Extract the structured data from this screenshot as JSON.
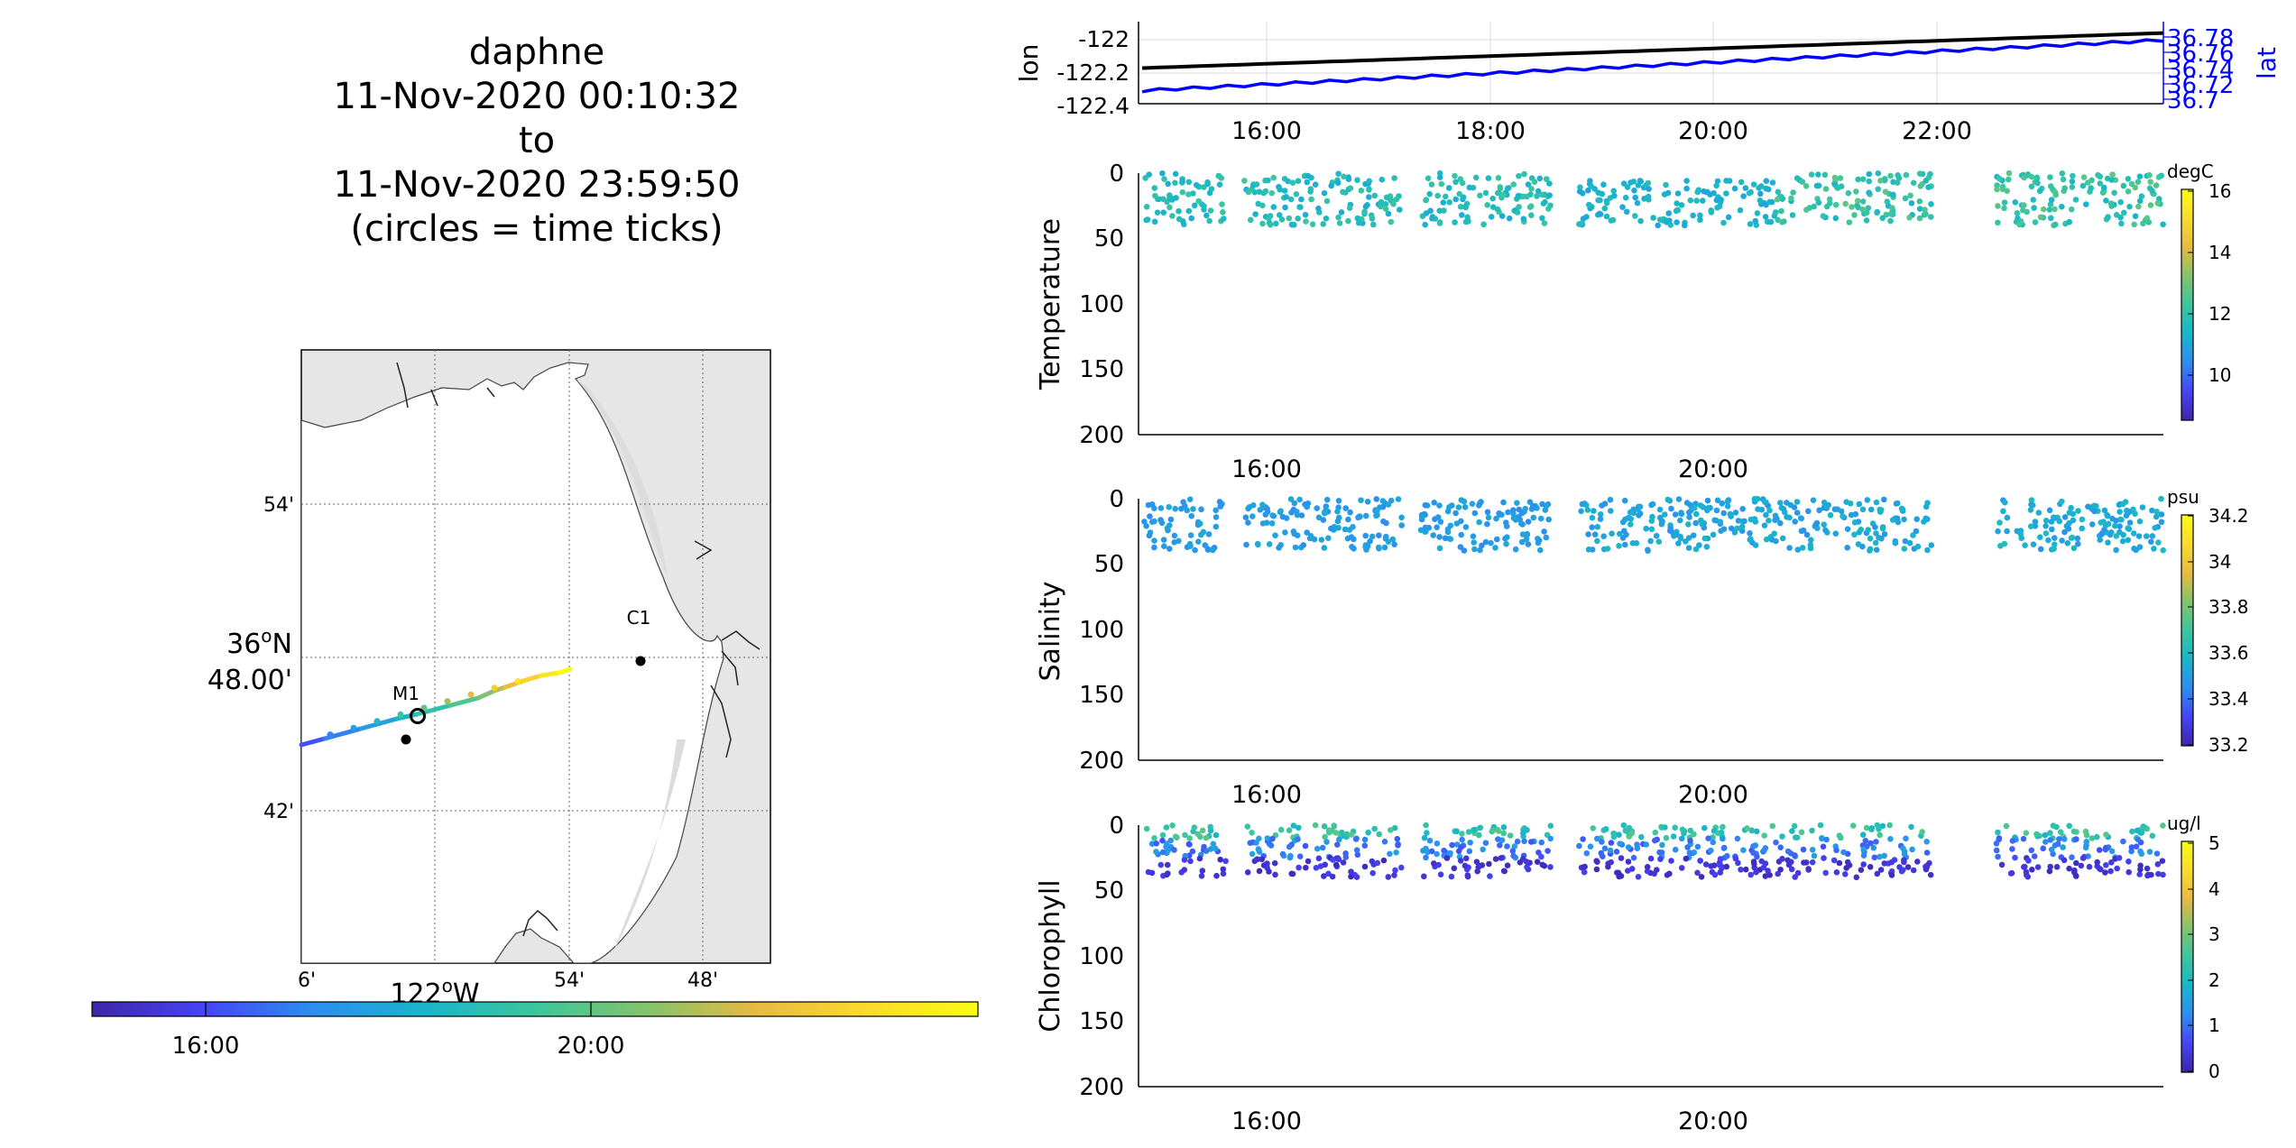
{
  "title": {
    "platform": "daphne",
    "start": "11-Nov-2020 00:10:32",
    "to": "to",
    "end": "11-Nov-2020 23:59:50",
    "note": "(circles = time ticks)"
  },
  "colors": {
    "viridis": [
      "#3e26a8",
      "#4743f8",
      "#2d8ef1",
      "#18b6cb",
      "#3bc69e",
      "#83c36c",
      "#e7ba42",
      "#fadb2b",
      "#f9fb15"
    ],
    "land": "#e6e6e6",
    "right_axis": "#0000ff",
    "lon_line": "#000000"
  },
  "chart_data": [
    {
      "type": "map",
      "y_tick_labels": [
        "54'",
        "36°N 48.00'",
        "42'"
      ],
      "x_tick_labels": [
        "6'",
        "122°W",
        "54'",
        "48'"
      ],
      "stations": [
        {
          "name": "C1",
          "labeled": true
        },
        {
          "name": "M1",
          "labeled": true
        },
        {
          "name": "",
          "labeled": false
        }
      ],
      "track_time_range": [
        "00:10:32",
        "23:59:50"
      ],
      "colorbar": {
        "ticks": [
          "16:00",
          "20:00"
        ]
      }
    },
    {
      "type": "line",
      "ylabel_left": "lon",
      "ylabel_right": "lat",
      "yticks_left": [
        "-122",
        "-122.2",
        "-122.4"
      ],
      "yticks_right": [
        "36.78",
        "36.76",
        "36.74",
        "36.72",
        "36.7"
      ],
      "xticks": [
        "16:00",
        "18:00",
        "20:00",
        "22:00"
      ],
      "grid": true,
      "series": [
        {
          "axis": "left",
          "x": [
            "14:50",
            "24:00"
          ],
          "y": [
            -122.17,
            -121.96
          ]
        },
        {
          "axis": "right",
          "x": [
            "14:50",
            "24:00"
          ],
          "y": [
            36.711,
            36.776
          ]
        }
      ]
    },
    {
      "type": "scatter",
      "ylabel": "Temperature",
      "yticks": [
        "0",
        "50",
        "100",
        "150",
        "200"
      ],
      "ylim": [
        200,
        0
      ],
      "xticks": [
        "16:00",
        "20:00"
      ],
      "colorbar": {
        "unit": "degC",
        "ticks": [
          "16",
          "14",
          "12",
          "10"
        ],
        "range": [
          8.5,
          16
        ]
      },
      "gaps": [
        [
          "15:35",
          "15:45"
        ],
        [
          "17:10",
          "17:20"
        ],
        [
          "18:30",
          "18:45"
        ],
        [
          "21:55",
          "22:30"
        ]
      ],
      "bins": [
        {
          "x_range": [
            "14:50",
            "16:15"
          ],
          "depth_range": [
            0,
            40
          ],
          "value_range": [
            11.0,
            12.3
          ]
        },
        {
          "x_range": [
            "16:15",
            "18:30"
          ],
          "depth_range": [
            0,
            40
          ],
          "value_range": [
            11.0,
            12.3
          ]
        },
        {
          "x_range": [
            "18:45",
            "20:30"
          ],
          "depth_range": [
            5,
            40
          ],
          "value_range": [
            10.8,
            11.7
          ]
        },
        {
          "x_range": [
            "20:30",
            "21:55"
          ],
          "depth_range": [
            0,
            38
          ],
          "value_range": [
            11.2,
            12.8
          ]
        },
        {
          "x_range": [
            "22:30",
            "24:00"
          ],
          "depth_range": [
            0,
            40
          ],
          "value_range": [
            11.2,
            12.8
          ]
        }
      ]
    },
    {
      "type": "scatter",
      "ylabel": "Salinity",
      "yticks": [
        "0",
        "50",
        "100",
        "150",
        "200"
      ],
      "ylim": [
        200,
        0
      ],
      "xticks": [
        "16:00",
        "20:00"
      ],
      "colorbar": {
        "unit": "psu",
        "ticks": [
          "34.2",
          "34",
          "33.8",
          "33.6",
          "33.4",
          "33.2"
        ],
        "range": [
          33.15,
          34.25
        ]
      },
      "gaps": [
        [
          "15:35",
          "15:45"
        ],
        [
          "17:10",
          "17:20"
        ],
        [
          "18:30",
          "18:45"
        ],
        [
          "21:55",
          "22:30"
        ]
      ],
      "bins": [
        {
          "x_range": [
            "14:50",
            "18:30"
          ],
          "depth_range": [
            0,
            40
          ],
          "value_range": [
            33.42,
            33.52
          ]
        },
        {
          "x_range": [
            "18:45",
            "21:55"
          ],
          "depth_range": [
            0,
            40
          ],
          "value_range": [
            33.44,
            33.58
          ]
        },
        {
          "x_range": [
            "22:30",
            "24:00"
          ],
          "depth_range": [
            0,
            40
          ],
          "value_range": [
            33.44,
            33.6
          ]
        }
      ]
    },
    {
      "type": "scatter",
      "ylabel": "Chlorophyll",
      "yticks": [
        "0",
        "50",
        "100",
        "150",
        "200"
      ],
      "ylim": [
        200,
        0
      ],
      "xticks": [
        "16:00",
        "20:00"
      ],
      "colorbar": {
        "unit": "ug/l",
        "ticks": [
          "5",
          "4",
          "3",
          "2",
          "1",
          "0"
        ],
        "range": [
          0,
          5
        ]
      },
      "gaps": [
        [
          "15:35",
          "15:45"
        ],
        [
          "17:10",
          "17:20"
        ],
        [
          "18:30",
          "18:45"
        ],
        [
          "21:55",
          "22:30"
        ]
      ],
      "bins": [
        {
          "x_range": [
            "14:50",
            "24:00"
          ],
          "depth_range": [
            0,
            10
          ],
          "value_range": [
            1.8,
            2.8
          ]
        },
        {
          "x_range": [
            "14:50",
            "24:00"
          ],
          "depth_range": [
            10,
            25
          ],
          "value_range": [
            0.7,
            1.6
          ]
        },
        {
          "x_range": [
            "14:50",
            "24:00"
          ],
          "depth_range": [
            25,
            40
          ],
          "value_range": [
            0.1,
            0.6
          ]
        }
      ]
    }
  ]
}
